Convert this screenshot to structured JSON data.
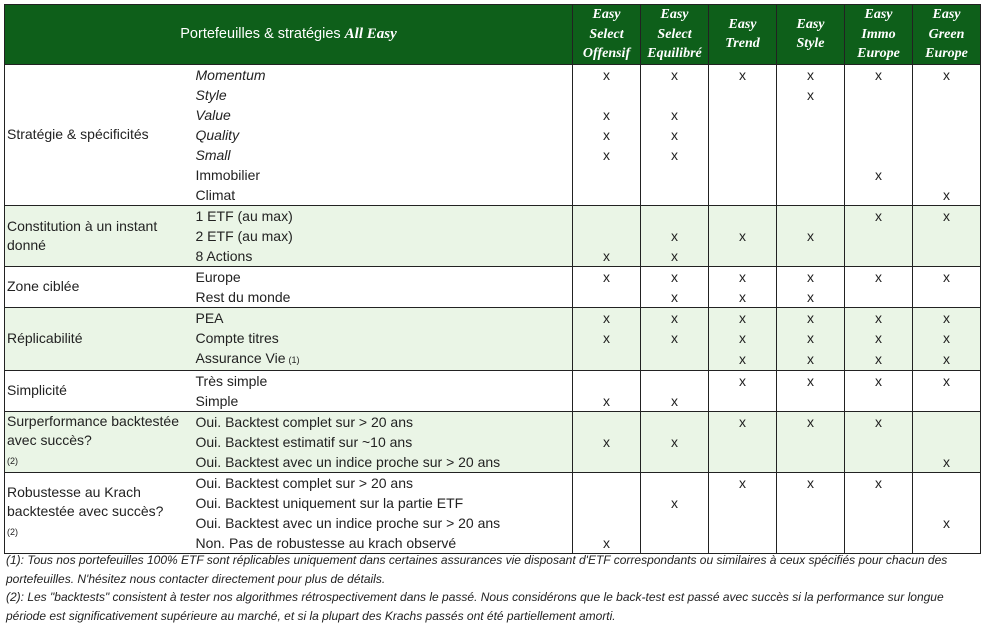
{
  "header": {
    "title_prefix": "Portefeuilles & stratégies",
    "title_brand": "All Easy",
    "columns": [
      [
        "Easy",
        "Select",
        "Offensif"
      ],
      [
        "Easy",
        "Select",
        "Equilibré"
      ],
      [
        "Easy",
        "Trend"
      ],
      [
        "Easy",
        "Style"
      ],
      [
        "Easy",
        "Immo",
        "Europe"
      ],
      [
        "Easy",
        "Green",
        "Europe"
      ]
    ]
  },
  "sections": [
    {
      "label": "Stratégie & spécificités",
      "rows": [
        {
          "label": "Momentum",
          "italic": true,
          "marks": [
            "x",
            "x",
            "x",
            "x",
            "x",
            "x"
          ]
        },
        {
          "label": "Style",
          "italic": true,
          "marks": [
            "",
            "",
            "",
            "x",
            "",
            ""
          ]
        },
        {
          "label": "Value",
          "italic": true,
          "marks": [
            "x",
            "x",
            "",
            "",
            "",
            ""
          ]
        },
        {
          "label": "Quality",
          "italic": true,
          "marks": [
            "x",
            "x",
            "",
            "",
            "",
            ""
          ]
        },
        {
          "label": "Small",
          "italic": true,
          "marks": [
            "x",
            "x",
            "",
            "",
            "",
            ""
          ]
        },
        {
          "label": "Immobilier",
          "italic": false,
          "marks": [
            "",
            "",
            "",
            "",
            "x",
            ""
          ]
        },
        {
          "label": "Climat",
          "italic": false,
          "marks": [
            "",
            "",
            "",
            "",
            "",
            "x"
          ]
        }
      ]
    },
    {
      "label": "Constitution à un instant donné",
      "rows": [
        {
          "label": "1 ETF (au max)",
          "marks": [
            "",
            "",
            "",
            "",
            "x",
            "x"
          ]
        },
        {
          "label": "2 ETF (au max)",
          "marks": [
            "",
            "x",
            "x",
            "x",
            "",
            ""
          ]
        },
        {
          "label": "8 Actions",
          "marks": [
            "x",
            "x",
            "",
            "",
            "",
            ""
          ]
        }
      ]
    },
    {
      "label": "Zone ciblée",
      "rows": [
        {
          "label": "Europe",
          "marks": [
            "x",
            "x",
            "x",
            "x",
            "x",
            "x"
          ]
        },
        {
          "label": "Rest du monde",
          "marks": [
            "",
            "x",
            "x",
            "x",
            "",
            ""
          ]
        }
      ]
    },
    {
      "label": "Réplicabilité",
      "rows": [
        {
          "label": "PEA",
          "marks": [
            "x",
            "x",
            "x",
            "x",
            "x",
            "x"
          ]
        },
        {
          "label": "Compte titres",
          "marks": [
            "x",
            "x",
            "x",
            "x",
            "x",
            "x"
          ]
        },
        {
          "label": "Assurance Vie",
          "note": "(1)",
          "marks": [
            "",
            "",
            "x",
            "x",
            "x",
            "x"
          ]
        }
      ]
    },
    {
      "label": "Simplicité",
      "rows": [
        {
          "label": "Très simple",
          "marks": [
            "",
            "",
            "x",
            "x",
            "x",
            "x"
          ]
        },
        {
          "label": "Simple",
          "marks": [
            "x",
            "x",
            "",
            "",
            "",
            ""
          ]
        }
      ]
    },
    {
      "label": "Surperformance backtestée avec succès?",
      "note": "(2)",
      "rows": [
        {
          "label": "Oui. Backtest complet sur > 20 ans",
          "marks": [
            "",
            "",
            "x",
            "x",
            "x",
            ""
          ]
        },
        {
          "label": "Oui. Backtest estimatif sur ~10 ans",
          "marks": [
            "x",
            "x",
            "",
            "",
            "",
            ""
          ]
        },
        {
          "label": "Oui. Backtest avec un indice proche sur > 20 ans",
          "marks": [
            "",
            "",
            "",
            "",
            "",
            "x"
          ]
        }
      ]
    },
    {
      "label": "Robustesse au Krach backtestée avec succès?",
      "note": "(2)",
      "rows": [
        {
          "label": "Oui. Backtest complet sur > 20 ans",
          "marks": [
            "",
            "",
            "x",
            "x",
            "x",
            ""
          ]
        },
        {
          "label": "Oui. Backtest uniquement sur la partie ETF",
          "marks": [
            "",
            "x",
            "",
            "",
            "",
            ""
          ]
        },
        {
          "label": "Oui. Backtest avec un indice proche sur > 20 ans",
          "marks": [
            "",
            "",
            "",
            "",
            "",
            "x"
          ]
        },
        {
          "label": "Non. Pas de robustesse au krach observé",
          "marks": [
            "x",
            "",
            "",
            "",
            "",
            ""
          ]
        }
      ]
    }
  ],
  "footnotes": [
    "(1): Tous nos portefeuilles 100% ETF sont réplicables uniquement dans certaines assurances vie disposant d'ETF correspondants ou similaires à ceux spécifiés pour chacun des portefeuilles. N'hésitez nous contacter directement pour plus de détails.",
    "(2): Les \"backtests\" consistent à tester nos algorithmes rétrospectivement dans le passé. Nous considérons que le back-test est passé avec succès si la performance sur longue période est significativement supérieure au marché, et si la plupart des Krachs passés ont été partiellement amorti."
  ]
}
